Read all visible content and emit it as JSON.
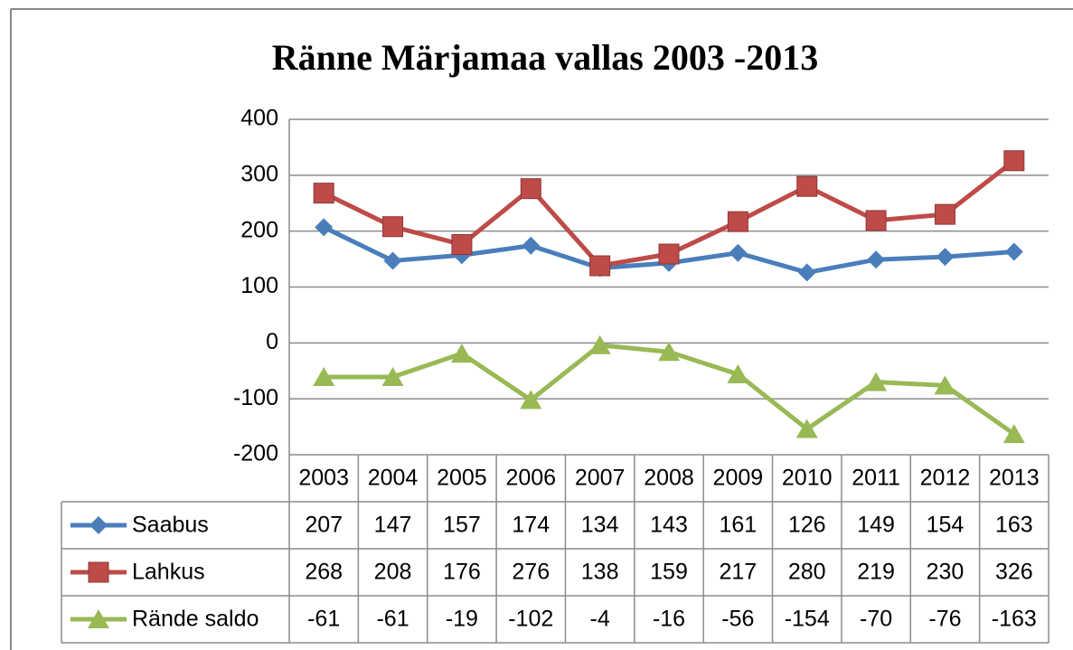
{
  "chart_data": {
    "type": "line",
    "title": "Ränne Märjamaa vallas 2003 -2013",
    "categories": [
      "2003",
      "2004",
      "2005",
      "2006",
      "2007",
      "2008",
      "2009",
      "2010",
      "2011",
      "2012",
      "2013"
    ],
    "series": [
      {
        "name": "Saabus",
        "color": "#4a7ebb",
        "marker": "diamond",
        "values": [
          207,
          147,
          157,
          174,
          134,
          143,
          161,
          126,
          149,
          154,
          163
        ]
      },
      {
        "name": "Lahkus",
        "color": "#be4b48",
        "marker": "square",
        "values": [
          268,
          208,
          176,
          276,
          138,
          159,
          217,
          280,
          219,
          230,
          326
        ]
      },
      {
        "name": "Rände saldo",
        "color": "#98b954",
        "marker": "triangle",
        "values": [
          -61,
          -61,
          -19,
          -102,
          -4,
          -16,
          -56,
          -154,
          -70,
          -76,
          -163
        ]
      }
    ],
    "ylim": [
      -200,
      400
    ],
    "yticks": [
      -200,
      -100,
      0,
      100,
      200,
      300,
      400
    ],
    "grid": true
  }
}
